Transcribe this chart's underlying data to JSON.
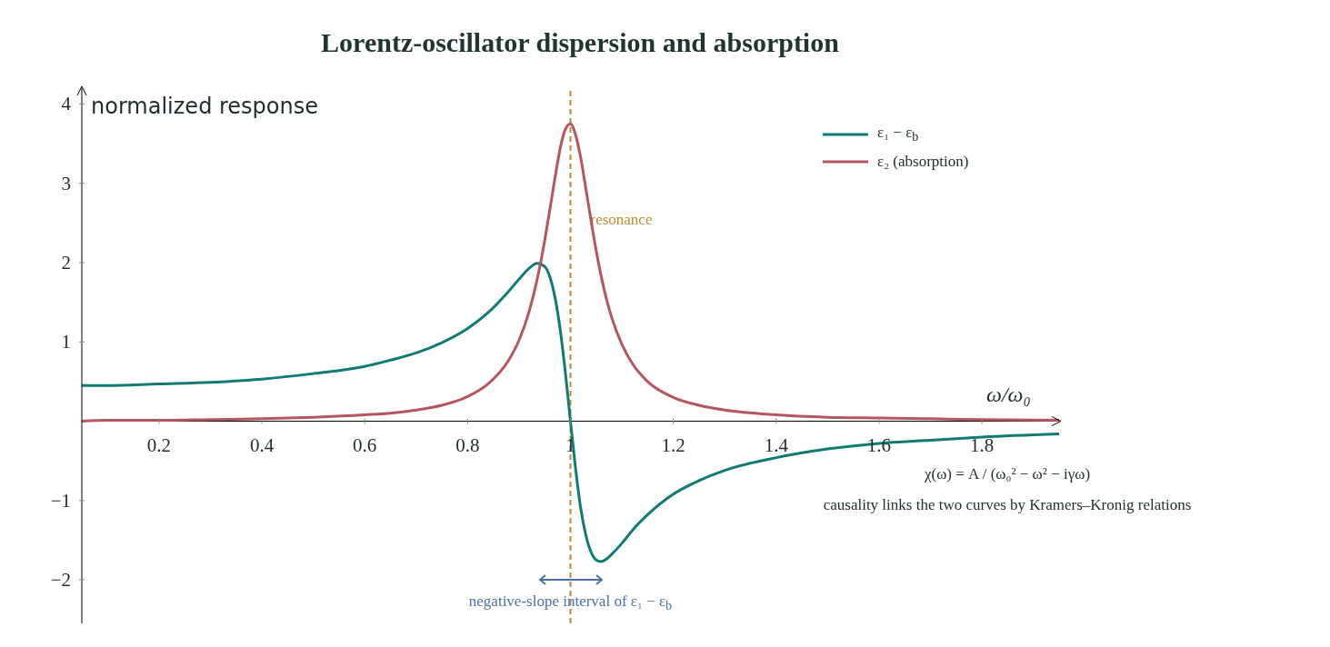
{
  "chart_data": {
    "type": "line",
    "title": "Lorentz-oscillator dispersion and absorption",
    "xlabel": "ω/ω₀",
    "ylabel": "normalized response",
    "x": [
      0.05,
      0.1,
      0.2,
      0.3,
      0.4,
      0.5,
      0.6,
      0.65,
      0.7,
      0.75,
      0.8,
      0.84,
      0.88,
      0.9,
      0.92,
      0.935,
      0.95,
      0.96,
      0.97,
      0.98,
      0.99,
      1.0,
      1.01,
      1.02,
      1.03,
      1.04,
      1.05,
      1.06,
      1.07,
      1.08,
      1.1,
      1.12,
      1.15,
      1.2,
      1.25,
      1.3,
      1.4,
      1.5,
      1.6,
      1.7,
      1.8,
      1.95
    ],
    "series": [
      {
        "name": "ε₁ − ε$_{b}$",
        "color": "#0f7b74",
        "values": [
          0.45,
          0.45,
          0.47,
          0.49,
          0.53,
          0.6,
          0.69,
          0.77,
          0.86,
          0.99,
          1.17,
          1.37,
          1.64,
          1.79,
          1.93,
          1.99,
          1.95,
          1.82,
          1.56,
          1.16,
          0.62,
          0,
          -0.6,
          -1.1,
          -1.44,
          -1.65,
          -1.75,
          -1.77,
          -1.74,
          -1.68,
          -1.54,
          -1.38,
          -1.18,
          -0.92,
          -0.75,
          -0.62,
          -0.46,
          -0.35,
          -0.28,
          -0.24,
          -0.2,
          -0.16
        ]
      },
      {
        "name": "ε₂ (absorption)",
        "color": "#b5555f",
        "values": [
          0,
          0.01,
          0.01,
          0.02,
          0.03,
          0.05,
          0.08,
          0.1,
          0.14,
          0.2,
          0.31,
          0.47,
          0.77,
          1.02,
          1.39,
          1.78,
          2.28,
          2.67,
          3.07,
          3.44,
          3.68,
          3.75,
          3.61,
          3.32,
          2.93,
          2.53,
          2.15,
          1.82,
          1.54,
          1.31,
          0.97,
          0.73,
          0.5,
          0.3,
          0.2,
          0.14,
          0.08,
          0.05,
          0.04,
          0.03,
          0.02,
          0.01
        ]
      }
    ],
    "xlim": [
      0.05,
      1.95
    ],
    "xticks": [
      0.2,
      0.4,
      0.6,
      0.8,
      1,
      1.2,
      1.4,
      1.6,
      1.8
    ],
    "ylim": [
      -2.55,
      4.2
    ],
    "yticks": [
      -2,
      -1,
      1,
      2,
      3,
      4
    ],
    "ref_lines": [
      {
        "axis": "x",
        "value": 1,
        "label": "resonance",
        "color": "#c48a2a",
        "line_style": "dashed"
      }
    ],
    "annotations": [
      {
        "text": "negative-slope interval of ε₁ − ε$_{b}$",
        "x": 1,
        "y": -2
      },
      "χ(ω) = A / (ω₀² − ω² − iγω)",
      "causality links the two curves by Kramers–Kronig relations"
    ],
    "legend": "top right",
    "marker": "none",
    "line_style": "solid"
  }
}
